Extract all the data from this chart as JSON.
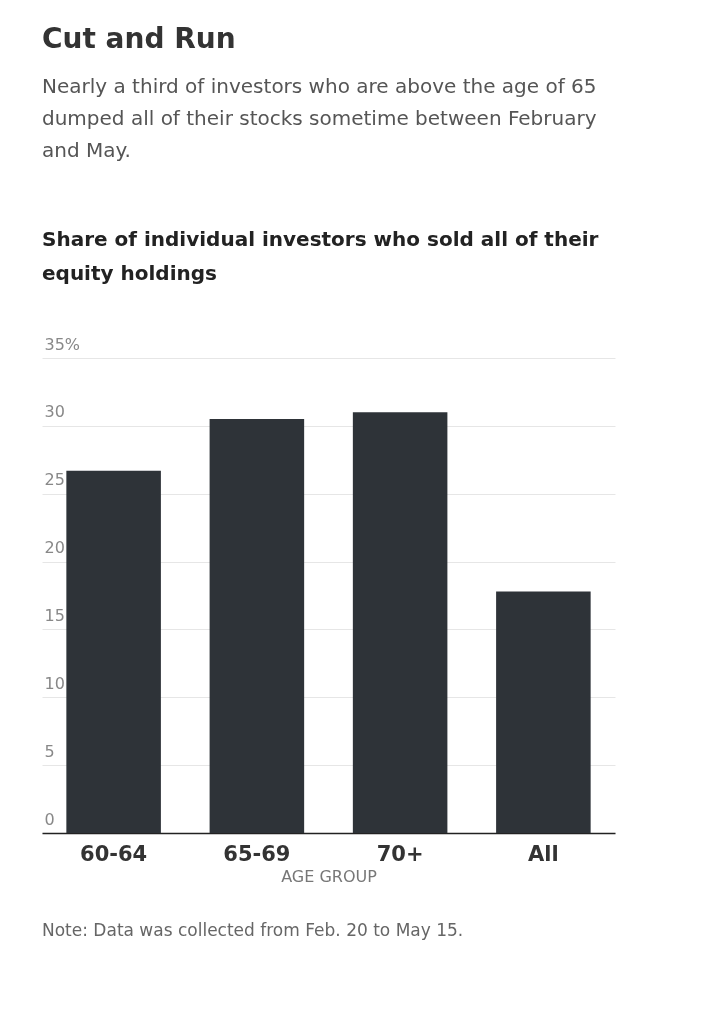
{
  "chart_data": {
    "type": "bar",
    "title": "Cut and Run",
    "subtitle": "Nearly a third of investors who are above the age of 65 dumped all of their stocks sometime between February and May.",
    "ylabel": "Share of individual investors who sold all of their equity holdings",
    "xlabel": "AGE GROUP",
    "categories": [
      "60-64",
      "65-69",
      "70+",
      "All"
    ],
    "values": [
      26.7,
      30.5,
      31.0,
      17.8
    ],
    "color": "#2e3338",
    "ylim": [
      0,
      35
    ],
    "yticks": [
      0,
      5,
      10,
      15,
      20,
      25,
      30,
      {
        "value": 35,
        "label": "35%"
      }
    ],
    "grid": "y",
    "annotations": [
      "Note: Data was collected from Feb. 20 to May 15."
    ]
  }
}
